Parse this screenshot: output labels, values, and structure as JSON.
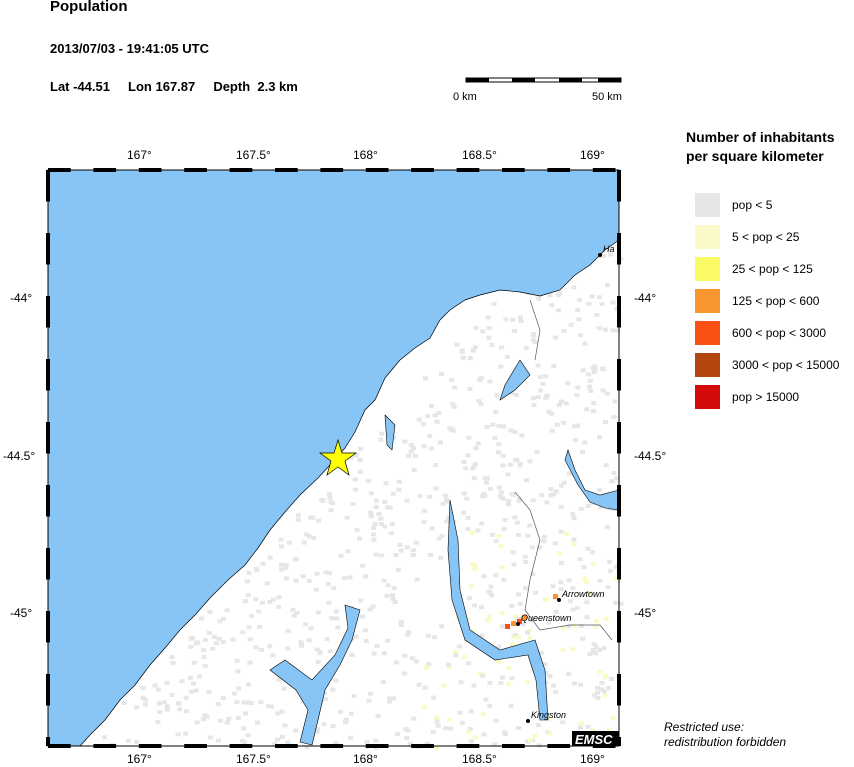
{
  "title": "Population",
  "datetime": "2013/07/03 - 19:41:05 UTC",
  "event": {
    "lat": "Lat -44.51",
    "lon": "Lon 167.87",
    "depth": "Depth  2.3 km"
  },
  "scale": {
    "start": "0 km",
    "end": "50 km"
  },
  "legend": {
    "title_line1": "Number of inhabitants",
    "title_line2": "per square kilometer",
    "items": [
      {
        "label": "pop < 5",
        "color": "#e6e6e6"
      },
      {
        "label": "5 < pop < 25",
        "color": "#fafac8"
      },
      {
        "label": "25 < pop < 125",
        "color": "#fafa64"
      },
      {
        "label": "125 < pop < 600",
        "color": "#fa9632"
      },
      {
        "label": "600 < pop < 3000",
        "color": "#fa5014"
      },
      {
        "label": "3000 < pop < 15000",
        "color": "#b4460f"
      },
      {
        "label": "pop > 15000",
        "color": "#d20a0a"
      }
    ]
  },
  "map": {
    "lon_ticks": [
      "167°",
      "167.5°",
      "168°",
      "168.5°",
      "169°"
    ],
    "lat_ticks": [
      "-44°",
      "-44.5°",
      "-45°"
    ],
    "towns": [
      "Ha",
      "Arrowtown",
      "Queenstown",
      "Kingston"
    ],
    "watermark": "EMSC",
    "colors": {
      "water": "#86c5f5",
      "land": "#ffffff",
      "epicenter": "#ffff00"
    }
  },
  "notice": {
    "line1": "Restricted use:",
    "line2": "redistribution forbidden"
  }
}
